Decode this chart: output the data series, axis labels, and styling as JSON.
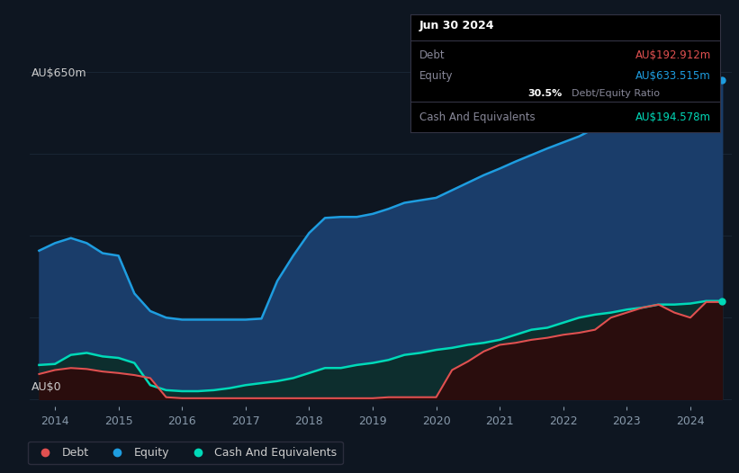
{
  "background_color": "#0e1621",
  "plot_bg_color": "#0e1621",
  "grid_color": "#1e2d3d",
  "title_label": "AU$650m",
  "bottom_label": "AU$0",
  "years": [
    2013.75,
    2014.0,
    2014.25,
    2014.5,
    2014.75,
    2015.0,
    2015.25,
    2015.5,
    2015.75,
    2016.0,
    2016.25,
    2016.5,
    2016.75,
    2017.0,
    2017.25,
    2017.5,
    2017.75,
    2018.0,
    2018.25,
    2018.5,
    2018.75,
    2019.0,
    2019.25,
    2019.5,
    2019.75,
    2020.0,
    2020.25,
    2020.5,
    2020.75,
    2021.0,
    2021.25,
    2021.5,
    2021.75,
    2022.0,
    2022.25,
    2022.5,
    2022.75,
    2023.0,
    2023.25,
    2023.5,
    2023.75,
    2024.0,
    2024.25,
    2024.5
  ],
  "equity": [
    295,
    310,
    320,
    310,
    290,
    285,
    210,
    175,
    162,
    158,
    158,
    158,
    158,
    158,
    160,
    235,
    285,
    330,
    360,
    362,
    362,
    368,
    378,
    390,
    395,
    400,
    415,
    430,
    445,
    458,
    472,
    485,
    498,
    510,
    522,
    538,
    552,
    565,
    580,
    592,
    610,
    620,
    633,
    633
  ],
  "debt": [
    50,
    58,
    62,
    60,
    55,
    52,
    48,
    42,
    4,
    2,
    2,
    2,
    2,
    2,
    2,
    2,
    2,
    2,
    2,
    2,
    2,
    2,
    4,
    4,
    4,
    4,
    58,
    75,
    95,
    108,
    112,
    118,
    122,
    128,
    132,
    138,
    162,
    172,
    182,
    188,
    172,
    162,
    193,
    193
  ],
  "cash": [
    68,
    70,
    88,
    92,
    85,
    82,
    72,
    28,
    18,
    16,
    16,
    18,
    22,
    28,
    32,
    36,
    42,
    52,
    62,
    62,
    68,
    72,
    78,
    88,
    92,
    98,
    102,
    108,
    112,
    118,
    128,
    138,
    142,
    152,
    162,
    168,
    172,
    178,
    182,
    188,
    188,
    190,
    195,
    195
  ],
  "equity_color": "#1e9de0",
  "debt_color": "#e05050",
  "cash_color": "#00d9b8",
  "equity_fill_color": "#1a3d6a",
  "cash_fill_color": "#0d2e2e",
  "debt_fill_color": "#2a0d0d",
  "ylim_max": 680,
  "ylim_min": -15,
  "xlim_min": 2013.6,
  "xlim_max": 2024.65,
  "xticks": [
    2014,
    2015,
    2016,
    2017,
    2018,
    2019,
    2020,
    2021,
    2022,
    2023,
    2024
  ],
  "grid_lines_y": [
    0,
    162.5,
    325,
    487.5,
    650
  ],
  "tooltip_title": "Jun 30 2024",
  "tooltip_debt_label": "Debt",
  "tooltip_debt_value": "AU$192.912m",
  "tooltip_equity_label": "Equity",
  "tooltip_equity_value": "AU$633.515m",
  "tooltip_ratio_value": "30.5%",
  "tooltip_ratio_label": "Debt/Equity Ratio",
  "tooltip_cash_label": "Cash And Equivalents",
  "tooltip_cash_value": "AU$194.578m",
  "legend_debt": "Debt",
  "legend_equity": "Equity",
  "legend_cash": "Cash And Equivalents"
}
